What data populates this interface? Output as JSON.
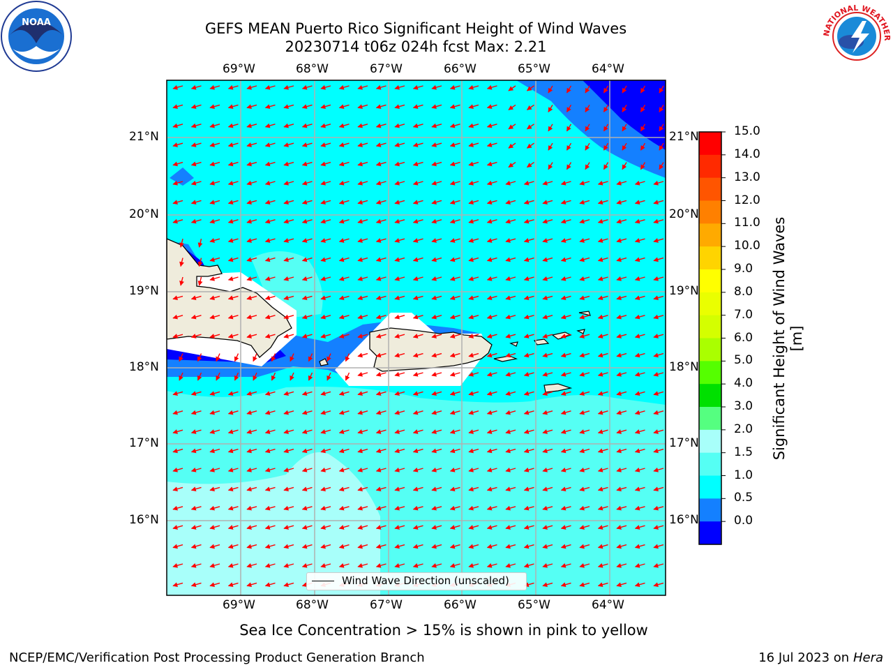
{
  "header": {
    "title_line1": "GEFS MEAN Puerto Rico Significant Height of Wind Waves",
    "title_line2": "20230714 t06z 024h fcst   Max: 2.21"
  },
  "logos": {
    "left": {
      "name": "noaa-logo",
      "text": "NOAA"
    },
    "right": {
      "name": "nws-logo",
      "text": "NATIONAL WEATHER SERVICE"
    }
  },
  "map": {
    "lon_labels": [
      "69°W",
      "68°W",
      "67°W",
      "66°W",
      "65°W",
      "64°W"
    ],
    "lat_labels": [
      "21°N",
      "20°N",
      "19°N",
      "18°N",
      "17°N",
      "16°N"
    ],
    "legend_label": "Wind Wave Direction (unscaled)",
    "colors": {
      "land": "#efecdc",
      "arrow": "#ff0000",
      "grid": "#b0b0b0"
    }
  },
  "colorbar": {
    "label": "Significant Height of Wind Waves [m]",
    "ticks": [
      "15.0",
      "14.0",
      "13.0",
      "12.0",
      "11.0",
      "10.0",
      "9.0",
      "8.0",
      "7.0",
      "6.0",
      "5.0",
      "4.0",
      "3.0",
      "2.0",
      "1.5",
      "1.0",
      "0.5",
      "0.0"
    ],
    "colors": [
      "#ff0000",
      "#ff2a00",
      "#ff5500",
      "#ff8000",
      "#ffaa00",
      "#ffd400",
      "#ffff00",
      "#eaff00",
      "#d4ff00",
      "#aaff00",
      "#55ff00",
      "#00e000",
      "#55ff80",
      "#a8fffa",
      "#55fff4",
      "#00ffff",
      "#1480ff",
      "#0000ff"
    ]
  },
  "footer": {
    "sea_ice_note": "Sea Ice Concentration > 15% is shown in pink to yellow",
    "left": "NCEP/EMC/Verification Post Processing Product Generation Branch",
    "date": "16 Jul 2023 on ",
    "system": "Hera"
  }
}
